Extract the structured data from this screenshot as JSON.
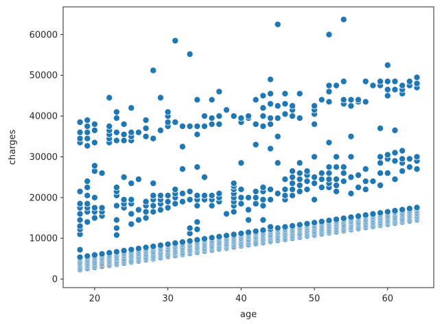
{
  "chart_data": {
    "type": "scatter",
    "title": "",
    "xlabel": "age",
    "ylabel": "charges",
    "xlim": [
      15.7,
      66.3
    ],
    "ylim": [
      -2100,
      66800
    ],
    "xticks": [
      20,
      30,
      40,
      50,
      60
    ],
    "yticks": [
      0,
      10000,
      20000,
      30000,
      40000,
      50000,
      60000
    ],
    "grid": false,
    "marker_color": "#1f77b4",
    "marker_edge_color": "#ffffff",
    "base_band": {
      "ages": [
        18,
        19,
        20,
        21,
        22,
        23,
        24,
        25,
        26,
        27,
        28,
        29,
        30,
        31,
        32,
        33,
        34,
        35,
        36,
        37,
        38,
        39,
        40,
        41,
        42,
        43,
        44,
        45,
        46,
        47,
        48,
        49,
        50,
        51,
        52,
        53,
        54,
        55,
        56,
        57,
        58,
        59,
        60,
        61,
        62,
        63,
        64
      ],
      "intercept": -2400,
      "slope": 265,
      "spread": 3000
    },
    "points": [
      [
        18,
        7200
      ],
      [
        18,
        11000
      ],
      [
        18,
        12200
      ],
      [
        18,
        13000
      ],
      [
        18,
        14500
      ],
      [
        18,
        16000
      ],
      [
        18,
        17500
      ],
      [
        18,
        18500
      ],
      [
        18,
        21500
      ],
      [
        19,
        14000
      ],
      [
        19,
        16500
      ],
      [
        19,
        17500
      ],
      [
        19,
        18500
      ],
      [
        19,
        20500
      ],
      [
        19,
        22500
      ],
      [
        19,
        24000
      ],
      [
        20,
        15000
      ],
      [
        20,
        16500
      ],
      [
        20,
        17500
      ],
      [
        20,
        20000
      ],
      [
        20,
        26500
      ],
      [
        20,
        27800
      ],
      [
        21,
        15500
      ],
      [
        21,
        16500
      ],
      [
        21,
        17500
      ],
      [
        21,
        26000
      ],
      [
        23,
        10800
      ],
      [
        23,
        12500
      ],
      [
        23,
        14500
      ],
      [
        23,
        18000
      ],
      [
        23,
        20500
      ],
      [
        23,
        21500
      ],
      [
        23,
        22500
      ],
      [
        24,
        17500
      ],
      [
        24,
        18500
      ],
      [
        24,
        19500
      ],
      [
        24,
        25000
      ],
      [
        25,
        13500
      ],
      [
        25,
        16000
      ],
      [
        25,
        18500
      ],
      [
        25,
        19500
      ],
      [
        25,
        23500
      ],
      [
        26,
        14500
      ],
      [
        26,
        17000
      ],
      [
        26,
        24500
      ],
      [
        27,
        15000
      ],
      [
        27,
        16500
      ],
      [
        27,
        18000
      ],
      [
        27,
        19000
      ],
      [
        28,
        16500
      ],
      [
        28,
        18000
      ],
      [
        28,
        19500
      ],
      [
        28,
        20500
      ],
      [
        28,
        23500
      ],
      [
        29,
        17000
      ],
      [
        29,
        18500
      ],
      [
        29,
        19500
      ],
      [
        29,
        20500
      ],
      [
        30,
        17500
      ],
      [
        30,
        19000
      ],
      [
        30,
        20500
      ],
      [
        31,
        18500
      ],
      [
        31,
        20000
      ],
      [
        31,
        21000
      ],
      [
        31,
        22000
      ],
      [
        32,
        19000
      ],
      [
        32,
        21000
      ],
      [
        32,
        27000
      ],
      [
        33,
        11200
      ],
      [
        33,
        12500
      ],
      [
        33,
        19500
      ],
      [
        33,
        21500
      ],
      [
        34,
        12200
      ],
      [
        34,
        14000
      ],
      [
        34,
        18000
      ],
      [
        34,
        19500
      ],
      [
        34,
        20500
      ],
      [
        34,
        27500
      ],
      [
        35,
        19500
      ],
      [
        35,
        20500
      ],
      [
        35,
        25000
      ],
      [
        36,
        18000
      ],
      [
        36,
        19500
      ],
      [
        36,
        20500
      ],
      [
        37,
        19000
      ],
      [
        37,
        20000
      ],
      [
        37,
        21000
      ],
      [
        38,
        16000
      ],
      [
        39,
        16500
      ],
      [
        39,
        18000
      ],
      [
        39,
        19000
      ],
      [
        39,
        20000
      ],
      [
        39,
        21000
      ],
      [
        39,
        22000
      ],
      [
        39,
        22800
      ],
      [
        39,
        23500
      ],
      [
        40,
        18500
      ],
      [
        40,
        20000
      ],
      [
        40,
        22000
      ],
      [
        40,
        28500
      ],
      [
        41,
        14500
      ],
      [
        41,
        17000
      ],
      [
        41,
        20000
      ],
      [
        42,
        18500
      ],
      [
        42,
        20000
      ],
      [
        42,
        21500
      ],
      [
        43,
        18000
      ],
      [
        43,
        19500
      ],
      [
        43,
        21500
      ],
      [
        43,
        22500
      ],
      [
        43,
        14500
      ],
      [
        44,
        12800
      ],
      [
        44,
        19500
      ],
      [
        44,
        22000
      ],
      [
        45,
        21000
      ],
      [
        45,
        28500
      ],
      [
        46,
        19500
      ],
      [
        46,
        20500
      ],
      [
        46,
        22000
      ],
      [
        46,
        24500
      ],
      [
        47,
        20500
      ],
      [
        47,
        22000
      ],
      [
        47,
        23500
      ],
      [
        47,
        25000
      ],
      [
        47,
        26500
      ],
      [
        48,
        21500
      ],
      [
        48,
        23000
      ],
      [
        48,
        24500
      ],
      [
        48,
        26000
      ],
      [
        48,
        28500
      ],
      [
        49,
        22000
      ],
      [
        49,
        24000
      ],
      [
        49,
        25500
      ],
      [
        49,
        26500
      ],
      [
        50,
        19500
      ],
      [
        50,
        23500
      ],
      [
        50,
        25000
      ],
      [
        50,
        30000
      ],
      [
        51,
        22500
      ],
      [
        51,
        24500
      ],
      [
        51,
        26000
      ],
      [
        52,
        22500
      ],
      [
        52,
        23500
      ],
      [
        52,
        24500
      ],
      [
        52,
        26000
      ],
      [
        52,
        27500
      ],
      [
        52,
        33500
      ],
      [
        53,
        21500
      ],
      [
        53,
        23000
      ],
      [
        53,
        24500
      ],
      [
        53,
        27500
      ],
      [
        53,
        30000
      ],
      [
        54,
        24000
      ],
      [
        54,
        26000
      ],
      [
        54,
        27500
      ],
      [
        55,
        21000
      ],
      [
        55,
        25000
      ],
      [
        55,
        30000
      ],
      [
        55,
        35000
      ],
      [
        56,
        22500
      ],
      [
        56,
        25500
      ],
      [
        57,
        22000
      ],
      [
        57,
        24000
      ],
      [
        57,
        27000
      ],
      [
        58,
        24000
      ],
      [
        59,
        23000
      ],
      [
        59,
        26000
      ],
      [
        59,
        28500
      ],
      [
        59,
        30000
      ],
      [
        59,
        37000
      ],
      [
        60,
        26000
      ],
      [
        60,
        29500
      ],
      [
        60,
        30500
      ],
      [
        61,
        24500
      ],
      [
        61,
        29000
      ],
      [
        61,
        31000
      ],
      [
        61,
        36500
      ],
      [
        62,
        26500
      ],
      [
        62,
        28500
      ],
      [
        62,
        29500
      ],
      [
        62,
        31500
      ],
      [
        63,
        27500
      ],
      [
        63,
        29500
      ],
      [
        64,
        27000
      ],
      [
        64,
        29000
      ],
      [
        64,
        30000
      ],
      [
        18,
        33500
      ],
      [
        18,
        34500
      ],
      [
        18,
        36000
      ],
      [
        18,
        38500
      ],
      [
        19,
        32700
      ],
      [
        19,
        34500
      ],
      [
        19,
        36000
      ],
      [
        19,
        37500
      ],
      [
        19,
        39000
      ],
      [
        20,
        33500
      ],
      [
        20,
        36500
      ],
      [
        20,
        38000
      ],
      [
        22,
        33500
      ],
      [
        22,
        34500
      ],
      [
        22,
        35500
      ],
      [
        22,
        36500
      ],
      [
        22,
        37500
      ],
      [
        22,
        44500
      ],
      [
        23,
        34000
      ],
      [
        23,
        36000
      ],
      [
        23,
        39500
      ],
      [
        23,
        41000
      ],
      [
        24,
        34000
      ],
      [
        24,
        35500
      ],
      [
        24,
        38000
      ],
      [
        25,
        34000
      ],
      [
        25,
        35000
      ],
      [
        25,
        36000
      ],
      [
        25,
        42000
      ],
      [
        26,
        36000
      ],
      [
        27,
        35000
      ],
      [
        27,
        37000
      ],
      [
        27,
        39000
      ],
      [
        28,
        34500
      ],
      [
        28,
        51200
      ],
      [
        29,
        36500
      ],
      [
        29,
        44500
      ],
      [
        30,
        37500
      ],
      [
        30,
        38500
      ],
      [
        30,
        40000
      ],
      [
        30,
        41000
      ],
      [
        31,
        38500
      ],
      [
        31,
        58500
      ],
      [
        32,
        32500
      ],
      [
        32,
        37500
      ],
      [
        33,
        37500
      ],
      [
        33,
        55200
      ],
      [
        34,
        35500
      ],
      [
        34,
        37500
      ],
      [
        34,
        44000
      ],
      [
        35,
        37500
      ],
      [
        35,
        40000
      ],
      [
        36,
        38000
      ],
      [
        36,
        39500
      ],
      [
        36,
        44000
      ],
      [
        37,
        38000
      ],
      [
        37,
        40000
      ],
      [
        37,
        46000
      ],
      [
        38,
        41500
      ],
      [
        39,
        40000
      ],
      [
        40,
        38500
      ],
      [
        40,
        39500
      ],
      [
        41,
        39500
      ],
      [
        41,
        40000
      ],
      [
        42,
        33000
      ],
      [
        42,
        38000
      ],
      [
        42,
        44000
      ],
      [
        43,
        37500
      ],
      [
        43,
        40000
      ],
      [
        43,
        42000
      ],
      [
        43,
        45000
      ],
      [
        44,
        32000
      ],
      [
        44,
        38000
      ],
      [
        44,
        39500
      ],
      [
        44,
        43000
      ],
      [
        44,
        45500
      ],
      [
        44,
        49000
      ],
      [
        45,
        35000
      ],
      [
        45,
        39500
      ],
      [
        45,
        42500
      ],
      [
        45,
        62500
      ],
      [
        46,
        40500
      ],
      [
        46,
        43000
      ],
      [
        46,
        45500
      ],
      [
        47,
        40000
      ],
      [
        47,
        41500
      ],
      [
        47,
        42500
      ],
      [
        48,
        39500
      ],
      [
        48,
        45500
      ],
      [
        50,
        38000
      ],
      [
        50,
        40500
      ],
      [
        50,
        41500
      ],
      [
        50,
        42500
      ],
      [
        51,
        44000
      ],
      [
        52,
        43500
      ],
      [
        52,
        46000
      ],
      [
        52,
        47500
      ],
      [
        52,
        60000
      ],
      [
        53,
        47500
      ],
      [
        54,
        43000
      ],
      [
        54,
        44000
      ],
      [
        54,
        48500
      ],
      [
        54,
        63700
      ],
      [
        55,
        42500
      ],
      [
        55,
        44000
      ],
      [
        56,
        43500
      ],
      [
        56,
        44000
      ],
      [
        57,
        43500
      ],
      [
        57,
        48500
      ],
      [
        58,
        47500
      ],
      [
        59,
        47500
      ],
      [
        59,
        48500
      ],
      [
        60,
        45000
      ],
      [
        60,
        46500
      ],
      [
        60,
        48500
      ],
      [
        60,
        52500
      ],
      [
        61,
        46500
      ],
      [
        61,
        48500
      ],
      [
        62,
        45500
      ],
      [
        62,
        46500
      ],
      [
        62,
        47500
      ],
      [
        63,
        47500
      ],
      [
        63,
        48500
      ],
      [
        64,
        47000
      ],
      [
        64,
        48000
      ],
      [
        64,
        49500
      ]
    ]
  }
}
